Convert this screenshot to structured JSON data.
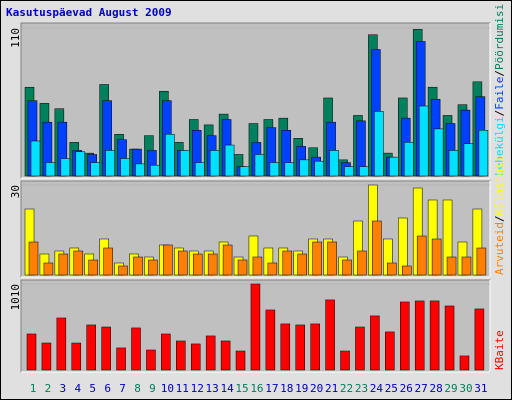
{
  "chart_data": [
    {
      "type": "bar",
      "title": "Kasutuspäevad August 2009",
      "ylim": [
        0,
        110
      ],
      "yticks": [
        110
      ],
      "separator": "/",
      "series": [
        {
          "name": "Pöördumisi",
          "color": "#00805c",
          "values": [
            66,
            54,
            50,
            25,
            17,
            68,
            31,
            20,
            30,
            63,
            25,
            42,
            38,
            46,
            16,
            39,
            42,
            43,
            28,
            21,
            58,
            12,
            45,
            105,
            17,
            58,
            109,
            66,
            45,
            53,
            70
          ]
        },
        {
          "name": "Faile",
          "color": "#0040ff",
          "values": [
            56,
            40,
            40,
            19,
            16,
            56,
            27,
            20,
            19,
            56,
            19,
            34,
            30,
            42,
            7,
            25,
            36,
            34,
            22,
            14,
            40,
            10,
            41,
            94,
            14,
            43,
            100,
            57,
            39,
            49,
            59
          ]
        },
        {
          "name": "Lehekülgi",
          "color": "#00e0ff",
          "values": [
            26,
            10,
            13,
            18,
            10,
            19,
            13,
            9,
            8,
            31,
            19,
            10,
            19,
            23,
            7,
            16,
            10,
            10,
            12,
            11,
            19,
            7,
            7,
            48,
            14,
            25,
            52,
            35,
            19,
            24,
            34
          ]
        }
      ]
    },
    {
      "type": "bar",
      "ylim": [
        0,
        30
      ],
      "yticks": [
        30
      ],
      "series": [
        {
          "name": "Külastusi",
          "color": "#ffff00",
          "values": [
            22,
            7,
            8,
            9,
            7,
            12,
            4,
            7,
            6,
            10,
            9,
            8,
            8,
            11,
            6,
            13,
            9,
            9,
            8,
            12,
            12,
            6,
            18,
            30,
            12,
            19,
            29,
            25,
            25,
            11,
            22
          ]
        },
        {
          "name": "Arvuteid",
          "color": "#ff8000",
          "values": [
            11,
            4,
            7,
            8,
            5,
            9,
            3,
            6,
            5,
            10,
            8,
            7,
            7,
            10,
            5,
            6,
            4,
            8,
            7,
            11,
            11,
            5,
            8,
            18,
            4,
            3,
            13,
            12,
            6,
            6,
            9
          ]
        }
      ]
    },
    {
      "type": "bar",
      "ylim": [
        0,
        1010
      ],
      "yticks": [
        1010
      ],
      "categories": [
        "1",
        "2",
        "3",
        "4",
        "5",
        "6",
        "7",
        "8",
        "9",
        "10",
        "11",
        "12",
        "13",
        "14",
        "15",
        "16",
        "17",
        "18",
        "19",
        "20",
        "21",
        "22",
        "23",
        "24",
        "25",
        "26",
        "27",
        "28",
        "29",
        "30",
        "31"
      ],
      "category_colors": [
        "#00805c",
        "#00805c",
        "#0000c0",
        "#0000c0",
        "#0000c0",
        "#0000c0",
        "#0000c0",
        "#00805c",
        "#00805c",
        "#0000c0",
        "#0000c0",
        "#0000c0",
        "#0000c0",
        "#0000c0",
        "#00805c",
        "#00805c",
        "#0000c0",
        "#0000c0",
        "#0000c0",
        "#0000c0",
        "#0000c0",
        "#00805c",
        "#00805c",
        "#0000c0",
        "#0000c0",
        "#0000c0",
        "#0000c0",
        "#0000c0",
        "#00805c",
        "#00805c",
        "#0000c0"
      ],
      "series": [
        {
          "name": "KBaite",
          "color": "#ff0000",
          "values": [
            423,
            317,
            611,
            317,
            529,
            505,
            259,
            494,
            235,
            423,
            341,
            306,
            400,
            341,
            223,
            1010,
            705,
            541,
            529,
            541,
            823,
            223,
            505,
            635,
            447,
            799,
            811,
            811,
            752,
            165,
            717
          ]
        }
      ]
    }
  ]
}
